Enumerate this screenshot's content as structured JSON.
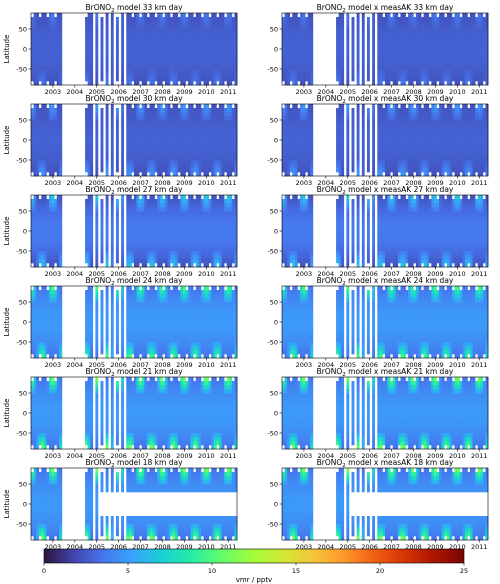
{
  "chart_data": {
    "type": "heatmap",
    "panels": [
      {
        "title_species": "BrONO",
        "title_sub": "2",
        "title_rest": " model  33 km  day",
        "altitude_km": 33,
        "variant": "model"
      },
      {
        "title_species": "BrONO",
        "title_sub": "2",
        "title_rest": " model x measAK  33 km  day",
        "altitude_km": 33,
        "variant": "model x measAK"
      },
      {
        "title_species": "BrONO",
        "title_sub": "2",
        "title_rest": " model  30 km  day",
        "altitude_km": 30,
        "variant": "model"
      },
      {
        "title_species": "BrONO",
        "title_sub": "2",
        "title_rest": " model x measAK  30 km  day",
        "altitude_km": 30,
        "variant": "model x measAK"
      },
      {
        "title_species": "BrONO",
        "title_sub": "2",
        "title_rest": " model  27 km  day",
        "altitude_km": 27,
        "variant": "model"
      },
      {
        "title_species": "BrONO",
        "title_sub": "2",
        "title_rest": " model x measAK  27 km  day",
        "altitude_km": 27,
        "variant": "model x measAK"
      },
      {
        "title_species": "BrONO",
        "title_sub": "2",
        "title_rest": " model  24 km  day",
        "altitude_km": 24,
        "variant": "model"
      },
      {
        "title_species": "BrONO",
        "title_sub": "2",
        "title_rest": " model x measAK  24 km  day",
        "altitude_km": 24,
        "variant": "model x measAK"
      },
      {
        "title_species": "BrONO",
        "title_sub": "2",
        "title_rest": " model  21 km  day",
        "altitude_km": 21,
        "variant": "model"
      },
      {
        "title_species": "BrONO",
        "title_sub": "2",
        "title_rest": " model x measAK  21 km  day",
        "altitude_km": 21,
        "variant": "model x measAK"
      },
      {
        "title_species": "BrONO",
        "title_sub": "2",
        "title_rest": " model  18 km  day",
        "altitude_km": 18,
        "variant": "model"
      },
      {
        "title_species": "BrONO",
        "title_sub": "2",
        "title_rest": " model x measAK  18 km  day",
        "altitude_km": 18,
        "variant": "model x measAK"
      }
    ],
    "x_range": [
      2002.5,
      2011.9
    ],
    "x_tick_labels": [
      "2003",
      "2004",
      "2005",
      "2006",
      "2007",
      "2008",
      "2009",
      "2010",
      "2011"
    ],
    "x_tick_values": [
      2003.5,
      2004.5,
      2005.5,
      2006.5,
      2007.5,
      2008.5,
      2009.5,
      2010.5,
      2011.5
    ],
    "ylabel": "Latitude",
    "ylim": [
      -90,
      90
    ],
    "y_ticks": [
      50,
      0,
      -50
    ],
    "colorbar": {
      "label": "vmr / pptv",
      "min": 0,
      "max": 25,
      "ticks": [
        0,
        5,
        10,
        15,
        20,
        25
      ],
      "colormap": "turbo"
    },
    "data_gaps": [
      {
        "from": 2003.95,
        "to": 2004.95,
        "note": "no data"
      },
      {
        "from": 2005.2,
        "to": 2006.8,
        "note": "sparse sampling"
      }
    ],
    "colors": {
      "low": "#30123b",
      "mid_low": "#4145ab",
      "mid": "#1ae4b6",
      "high": "#fabb2f",
      "max": "#7a0403"
    }
  }
}
